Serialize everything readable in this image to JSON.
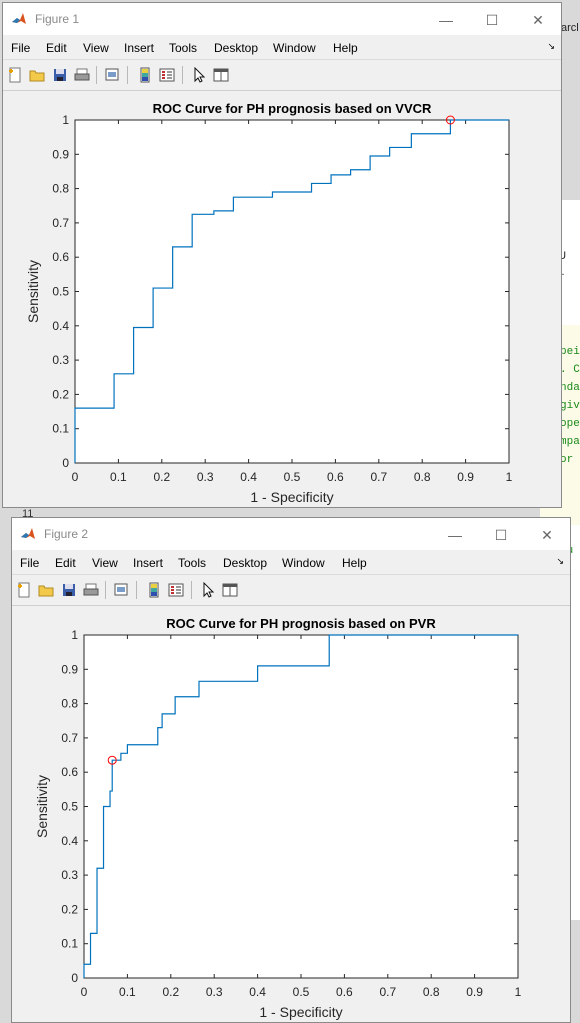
{
  "background": {
    "line_number": "11",
    "snippets": [
      "arcl",
      "t. U",
      "s.",
      "pei",
      ". C",
      "nda",
      "giv",
      "ope",
      "mpa",
      "or",
      "lu"
    ]
  },
  "menu_items": [
    "File",
    "Edit",
    "View",
    "Insert",
    "Tools",
    "Desktop",
    "Window",
    "Help"
  ],
  "toolbar_icons": [
    "new-figure-icon",
    "open-file-icon",
    "save-icon",
    "print-icon",
    "link-plot-icon",
    "insert-colorbar-icon",
    "insert-legend-icon",
    "edit-plot-pointer-icon",
    "property-inspector-icon"
  ],
  "window_controls": {
    "minimize": "—",
    "maximize": "☐",
    "close": "✕"
  },
  "figures": [
    {
      "window_title": "Figure 1",
      "chart_data": {
        "type": "line",
        "title": "ROC Curve for PH prognosis based on VVCR",
        "xlabel": "1 - Specificity",
        "ylabel": "Sensitivity",
        "xlim": [
          0,
          1
        ],
        "ylim": [
          0,
          1
        ],
        "xticks": [
          "0",
          "0.1",
          "0.2",
          "0.3",
          "0.4",
          "0.5",
          "0.6",
          "0.7",
          "0.8",
          "0.9",
          "1"
        ],
        "yticks": [
          "0",
          "0.1",
          "0.2",
          "0.3",
          "0.4",
          "0.5",
          "0.6",
          "0.7",
          "0.8",
          "0.9",
          "1"
        ],
        "grid": false,
        "line_color": "#0072bd",
        "marker_color": "#ff0000",
        "x": [
          0,
          0,
          0.09,
          0.09,
          0.135,
          0.135,
          0.18,
          0.18,
          0.225,
          0.225,
          0.27,
          0.27,
          0.32,
          0.32,
          0.365,
          0.365,
          0.455,
          0.455,
          0.545,
          0.545,
          0.59,
          0.59,
          0.635,
          0.635,
          0.68,
          0.68,
          0.725,
          0.725,
          0.775,
          0.775,
          0.865,
          0.865,
          1
        ],
        "y": [
          0,
          0.16,
          0.16,
          0.26,
          0.26,
          0.395,
          0.395,
          0.51,
          0.51,
          0.63,
          0.63,
          0.725,
          0.725,
          0.735,
          0.735,
          0.775,
          0.775,
          0.79,
          0.79,
          0.815,
          0.815,
          0.84,
          0.84,
          0.855,
          0.855,
          0.895,
          0.895,
          0.92,
          0.92,
          0.96,
          0.96,
          1.0,
          1.0
        ],
        "marker": {
          "x": 0.865,
          "y": 1.0
        }
      }
    },
    {
      "window_title": "Figure 2",
      "chart_data": {
        "type": "line",
        "title": "ROC Curve for PH prognosis based on PVR",
        "xlabel": "1 - Specificity",
        "ylabel": "Sensitivity",
        "xlim": [
          0,
          1
        ],
        "ylim": [
          0,
          1
        ],
        "xticks": [
          "0",
          "0.1",
          "0.2",
          "0.3",
          "0.4",
          "0.5",
          "0.6",
          "0.7",
          "0.8",
          "0.9",
          "1"
        ],
        "yticks": [
          "0",
          "0.1",
          "0.2",
          "0.3",
          "0.4",
          "0.5",
          "0.6",
          "0.7",
          "0.8",
          "0.9",
          "1"
        ],
        "grid": false,
        "line_color": "#0072bd",
        "marker_color": "#ff0000",
        "x": [
          0,
          0,
          0.015,
          0.015,
          0.03,
          0.03,
          0.045,
          0.045,
          0.06,
          0.06,
          0.065,
          0.065,
          0.085,
          0.085,
          0.1,
          0.1,
          0.17,
          0.17,
          0.18,
          0.18,
          0.21,
          0.21,
          0.265,
          0.265,
          0.4,
          0.4,
          0.565,
          0.565,
          1
        ],
        "y": [
          0,
          0.04,
          0.04,
          0.13,
          0.13,
          0.32,
          0.32,
          0.5,
          0.5,
          0.545,
          0.545,
          0.635,
          0.635,
          0.655,
          0.655,
          0.68,
          0.68,
          0.73,
          0.73,
          0.77,
          0.77,
          0.82,
          0.82,
          0.865,
          0.865,
          0.91,
          0.91,
          1.0,
          1.0
        ],
        "marker": {
          "x": 0.065,
          "y": 0.635
        }
      }
    }
  ]
}
